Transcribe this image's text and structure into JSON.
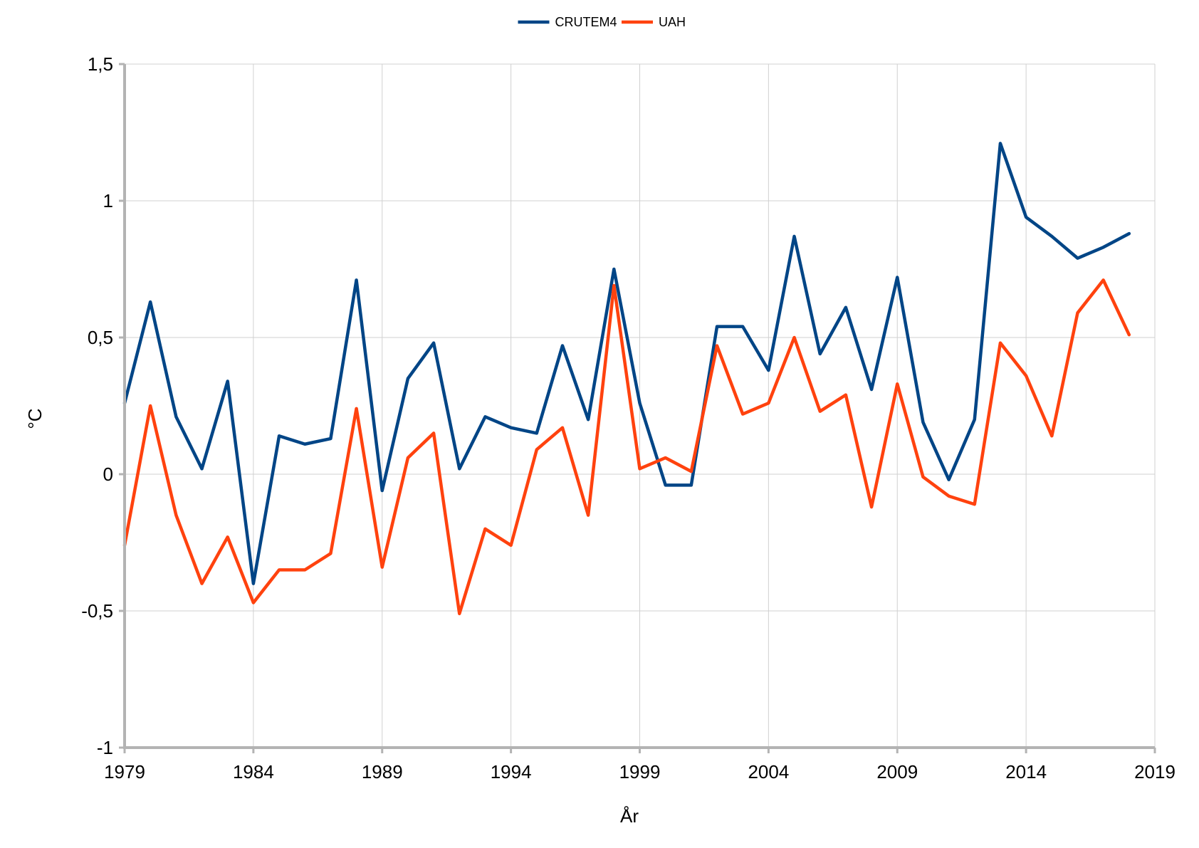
{
  "chart_data": {
    "type": "line",
    "xlabel": "År",
    "ylabel": "°C",
    "xlim": [
      1979,
      2019
    ],
    "ylim": [
      -1,
      1.5
    ],
    "x_ticks": [
      1979,
      1984,
      1989,
      1994,
      1999,
      2004,
      2009,
      2014,
      2019
    ],
    "y_ticks": [
      -1,
      -0.5,
      0,
      0.5,
      1,
      1.5
    ],
    "y_tick_labels": [
      "-1",
      "-0,5",
      "0",
      "0,5",
      "1",
      "1,5"
    ],
    "grid": true,
    "legend_position": "top-center",
    "x": [
      1979,
      1980,
      1981,
      1982,
      1983,
      1984,
      1985,
      1986,
      1987,
      1988,
      1989,
      1990,
      1991,
      1992,
      1993,
      1994,
      1995,
      1996,
      1997,
      1998,
      1999,
      2000,
      2001,
      2002,
      2003,
      2004,
      2005,
      2006,
      2007,
      2008,
      2009,
      2010,
      2011,
      2012,
      2013,
      2014,
      2015,
      2016,
      2017,
      2018
    ],
    "series": [
      {
        "name": "CRUTEM4",
        "color": "#004586",
        "values": [
          0.26,
          0.63,
          0.21,
          0.02,
          0.34,
          -0.4,
          0.14,
          0.11,
          0.13,
          0.71,
          -0.06,
          0.35,
          0.48,
          0.02,
          0.21,
          0.17,
          0.15,
          0.47,
          0.2,
          0.75,
          0.26,
          -0.04,
          -0.04,
          0.54,
          0.54,
          0.38,
          0.87,
          0.44,
          0.61,
          0.31,
          0.72,
          0.19,
          -0.02,
          0.2,
          1.21,
          0.94,
          0.87,
          0.79,
          0.83,
          0.88
        ]
      },
      {
        "name": "UAH",
        "color": "#ff420e",
        "values": [
          -0.26,
          0.25,
          -0.15,
          -0.4,
          -0.23,
          -0.47,
          -0.35,
          -0.35,
          -0.29,
          0.24,
          -0.34,
          0.06,
          0.15,
          -0.51,
          -0.2,
          -0.26,
          0.09,
          0.17,
          -0.15,
          0.69,
          0.02,
          0.06,
          0.01,
          0.47,
          0.22,
          0.26,
          0.5,
          0.23,
          0.29,
          -0.12,
          0.33,
          -0.01,
          -0.08,
          -0.11,
          0.48,
          0.36,
          0.14,
          0.59,
          0.71,
          0.51
        ]
      }
    ]
  }
}
